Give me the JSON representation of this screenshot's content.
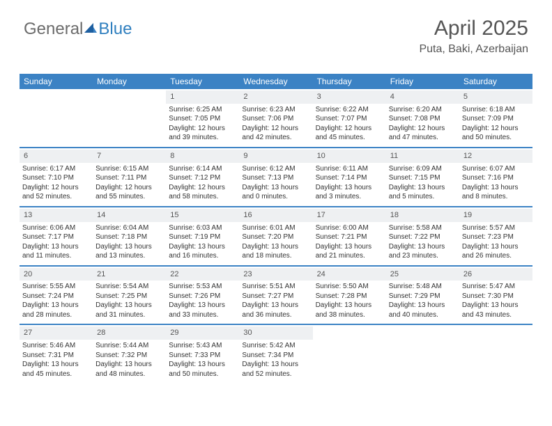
{
  "logo": {
    "general": "General",
    "blue": "Blue"
  },
  "header": {
    "month_title": "April 2025",
    "location": "Puta, Baki, Azerbaijan"
  },
  "colors": {
    "header_bg": "#3b82c4",
    "header_text": "#ffffff",
    "daynum_bg": "#eef0f2",
    "week_border": "#3b82c4",
    "text": "#333333",
    "logo_gray": "#6b6b6b",
    "logo_blue": "#2f7fbf"
  },
  "day_names": [
    "Sunday",
    "Monday",
    "Tuesday",
    "Wednesday",
    "Thursday",
    "Friday",
    "Saturday"
  ],
  "weeks": [
    [
      {
        "n": "",
        "sr": "",
        "ss": "",
        "d1": "",
        "d2": ""
      },
      {
        "n": "",
        "sr": "",
        "ss": "",
        "d1": "",
        "d2": ""
      },
      {
        "n": "1",
        "sr": "Sunrise: 6:25 AM",
        "ss": "Sunset: 7:05 PM",
        "d1": "Daylight: 12 hours",
        "d2": "and 39 minutes."
      },
      {
        "n": "2",
        "sr": "Sunrise: 6:23 AM",
        "ss": "Sunset: 7:06 PM",
        "d1": "Daylight: 12 hours",
        "d2": "and 42 minutes."
      },
      {
        "n": "3",
        "sr": "Sunrise: 6:22 AM",
        "ss": "Sunset: 7:07 PM",
        "d1": "Daylight: 12 hours",
        "d2": "and 45 minutes."
      },
      {
        "n": "4",
        "sr": "Sunrise: 6:20 AM",
        "ss": "Sunset: 7:08 PM",
        "d1": "Daylight: 12 hours",
        "d2": "and 47 minutes."
      },
      {
        "n": "5",
        "sr": "Sunrise: 6:18 AM",
        "ss": "Sunset: 7:09 PM",
        "d1": "Daylight: 12 hours",
        "d2": "and 50 minutes."
      }
    ],
    [
      {
        "n": "6",
        "sr": "Sunrise: 6:17 AM",
        "ss": "Sunset: 7:10 PM",
        "d1": "Daylight: 12 hours",
        "d2": "and 52 minutes."
      },
      {
        "n": "7",
        "sr": "Sunrise: 6:15 AM",
        "ss": "Sunset: 7:11 PM",
        "d1": "Daylight: 12 hours",
        "d2": "and 55 minutes."
      },
      {
        "n": "8",
        "sr": "Sunrise: 6:14 AM",
        "ss": "Sunset: 7:12 PM",
        "d1": "Daylight: 12 hours",
        "d2": "and 58 minutes."
      },
      {
        "n": "9",
        "sr": "Sunrise: 6:12 AM",
        "ss": "Sunset: 7:13 PM",
        "d1": "Daylight: 13 hours",
        "d2": "and 0 minutes."
      },
      {
        "n": "10",
        "sr": "Sunrise: 6:11 AM",
        "ss": "Sunset: 7:14 PM",
        "d1": "Daylight: 13 hours",
        "d2": "and 3 minutes."
      },
      {
        "n": "11",
        "sr": "Sunrise: 6:09 AM",
        "ss": "Sunset: 7:15 PM",
        "d1": "Daylight: 13 hours",
        "d2": "and 5 minutes."
      },
      {
        "n": "12",
        "sr": "Sunrise: 6:07 AM",
        "ss": "Sunset: 7:16 PM",
        "d1": "Daylight: 13 hours",
        "d2": "and 8 minutes."
      }
    ],
    [
      {
        "n": "13",
        "sr": "Sunrise: 6:06 AM",
        "ss": "Sunset: 7:17 PM",
        "d1": "Daylight: 13 hours",
        "d2": "and 11 minutes."
      },
      {
        "n": "14",
        "sr": "Sunrise: 6:04 AM",
        "ss": "Sunset: 7:18 PM",
        "d1": "Daylight: 13 hours",
        "d2": "and 13 minutes."
      },
      {
        "n": "15",
        "sr": "Sunrise: 6:03 AM",
        "ss": "Sunset: 7:19 PM",
        "d1": "Daylight: 13 hours",
        "d2": "and 16 minutes."
      },
      {
        "n": "16",
        "sr": "Sunrise: 6:01 AM",
        "ss": "Sunset: 7:20 PM",
        "d1": "Daylight: 13 hours",
        "d2": "and 18 minutes."
      },
      {
        "n": "17",
        "sr": "Sunrise: 6:00 AM",
        "ss": "Sunset: 7:21 PM",
        "d1": "Daylight: 13 hours",
        "d2": "and 21 minutes."
      },
      {
        "n": "18",
        "sr": "Sunrise: 5:58 AM",
        "ss": "Sunset: 7:22 PM",
        "d1": "Daylight: 13 hours",
        "d2": "and 23 minutes."
      },
      {
        "n": "19",
        "sr": "Sunrise: 5:57 AM",
        "ss": "Sunset: 7:23 PM",
        "d1": "Daylight: 13 hours",
        "d2": "and 26 minutes."
      }
    ],
    [
      {
        "n": "20",
        "sr": "Sunrise: 5:55 AM",
        "ss": "Sunset: 7:24 PM",
        "d1": "Daylight: 13 hours",
        "d2": "and 28 minutes."
      },
      {
        "n": "21",
        "sr": "Sunrise: 5:54 AM",
        "ss": "Sunset: 7:25 PM",
        "d1": "Daylight: 13 hours",
        "d2": "and 31 minutes."
      },
      {
        "n": "22",
        "sr": "Sunrise: 5:53 AM",
        "ss": "Sunset: 7:26 PM",
        "d1": "Daylight: 13 hours",
        "d2": "and 33 minutes."
      },
      {
        "n": "23",
        "sr": "Sunrise: 5:51 AM",
        "ss": "Sunset: 7:27 PM",
        "d1": "Daylight: 13 hours",
        "d2": "and 36 minutes."
      },
      {
        "n": "24",
        "sr": "Sunrise: 5:50 AM",
        "ss": "Sunset: 7:28 PM",
        "d1": "Daylight: 13 hours",
        "d2": "and 38 minutes."
      },
      {
        "n": "25",
        "sr": "Sunrise: 5:48 AM",
        "ss": "Sunset: 7:29 PM",
        "d1": "Daylight: 13 hours",
        "d2": "and 40 minutes."
      },
      {
        "n": "26",
        "sr": "Sunrise: 5:47 AM",
        "ss": "Sunset: 7:30 PM",
        "d1": "Daylight: 13 hours",
        "d2": "and 43 minutes."
      }
    ],
    [
      {
        "n": "27",
        "sr": "Sunrise: 5:46 AM",
        "ss": "Sunset: 7:31 PM",
        "d1": "Daylight: 13 hours",
        "d2": "and 45 minutes."
      },
      {
        "n": "28",
        "sr": "Sunrise: 5:44 AM",
        "ss": "Sunset: 7:32 PM",
        "d1": "Daylight: 13 hours",
        "d2": "and 48 minutes."
      },
      {
        "n": "29",
        "sr": "Sunrise: 5:43 AM",
        "ss": "Sunset: 7:33 PM",
        "d1": "Daylight: 13 hours",
        "d2": "and 50 minutes."
      },
      {
        "n": "30",
        "sr": "Sunrise: 5:42 AM",
        "ss": "Sunset: 7:34 PM",
        "d1": "Daylight: 13 hours",
        "d2": "and 52 minutes."
      },
      {
        "n": "",
        "sr": "",
        "ss": "",
        "d1": "",
        "d2": ""
      },
      {
        "n": "",
        "sr": "",
        "ss": "",
        "d1": "",
        "d2": ""
      },
      {
        "n": "",
        "sr": "",
        "ss": "",
        "d1": "",
        "d2": ""
      }
    ]
  ]
}
